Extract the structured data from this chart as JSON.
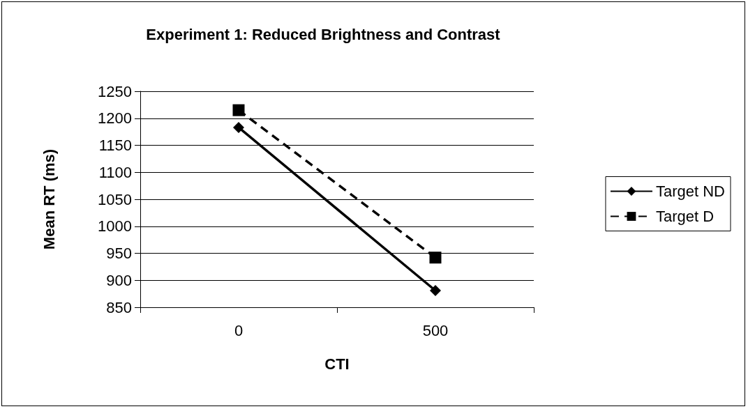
{
  "chart_data": {
    "type": "line",
    "title": "Experiment 1: Reduced Brightness and Contrast",
    "xlabel": "CTI",
    "ylabel": "Mean RT (ms)",
    "categories": [
      "0",
      "500"
    ],
    "series": [
      {
        "name": "Target ND",
        "color": "#000000",
        "values": [
          1183,
          881
        ],
        "marker": "diamond",
        "line_style": "solid"
      },
      {
        "name": "Target D",
        "color": "#000000",
        "values": [
          1215,
          942
        ],
        "marker": "square",
        "line_style": "dashed"
      }
    ],
    "ylim": [
      850,
      1250
    ],
    "yticks": [
      850,
      900,
      950,
      1000,
      1050,
      1100,
      1150,
      1200,
      1250
    ],
    "grid": "y",
    "legend": "right"
  }
}
